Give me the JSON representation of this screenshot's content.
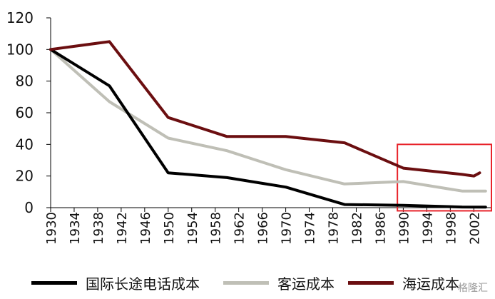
{
  "chart_data": {
    "type": "line",
    "title": "",
    "xlabel": "",
    "ylabel": "",
    "ylim": [
      0,
      120
    ],
    "yticks": [
      "0",
      "20",
      "40",
      "60",
      "80",
      "100",
      "120"
    ],
    "xlim": [
      1930,
      2005
    ],
    "xticks": [
      "1930",
      "1934",
      "1938",
      "1942",
      "1946",
      "1950",
      "1954",
      "1958",
      "1962",
      "1966",
      "1970",
      "1974",
      "1978",
      "1982",
      "1986",
      "1990",
      "1994",
      "1998",
      "2002"
    ],
    "grid": false,
    "legend": "bottom",
    "series": [
      {
        "name": "国际长途电话成本",
        "color": "#000000",
        "points": [
          [
            1930,
            100
          ],
          [
            1940,
            77
          ],
          [
            1950,
            22
          ],
          [
            1960,
            19
          ],
          [
            1970,
            13
          ],
          [
            1980,
            2
          ],
          [
            1990,
            1.5
          ],
          [
            2000,
            0.4
          ],
          [
            2004,
            0.3
          ]
        ]
      },
      {
        "name": "客运成本",
        "color": "#bfbfb6",
        "points": [
          [
            1930,
            100
          ],
          [
            1940,
            67
          ],
          [
            1950,
            44
          ],
          [
            1960,
            36
          ],
          [
            1970,
            24
          ],
          [
            1980,
            15
          ],
          [
            1990,
            16.5
          ],
          [
            2000,
            10.5
          ],
          [
            2004,
            10.5
          ]
        ]
      },
      {
        "name": "海运成本",
        "color": "#6b0e10",
        "points": [
          [
            1930,
            100
          ],
          [
            1940,
            105
          ],
          [
            1950,
            57
          ],
          [
            1960,
            45
          ],
          [
            1970,
            45
          ],
          [
            1980,
            41
          ],
          [
            1990,
            25
          ],
          [
            2000,
            21
          ],
          [
            2002,
            20
          ],
          [
            2003,
            22
          ]
        ]
      }
    ],
    "annotations": [
      {
        "type": "rectangle",
        "color": "#e8232b",
        "x_range": [
          1989,
          2005
        ],
        "y_range": [
          -2,
          40
        ]
      }
    ]
  },
  "watermark": "格隆汇"
}
